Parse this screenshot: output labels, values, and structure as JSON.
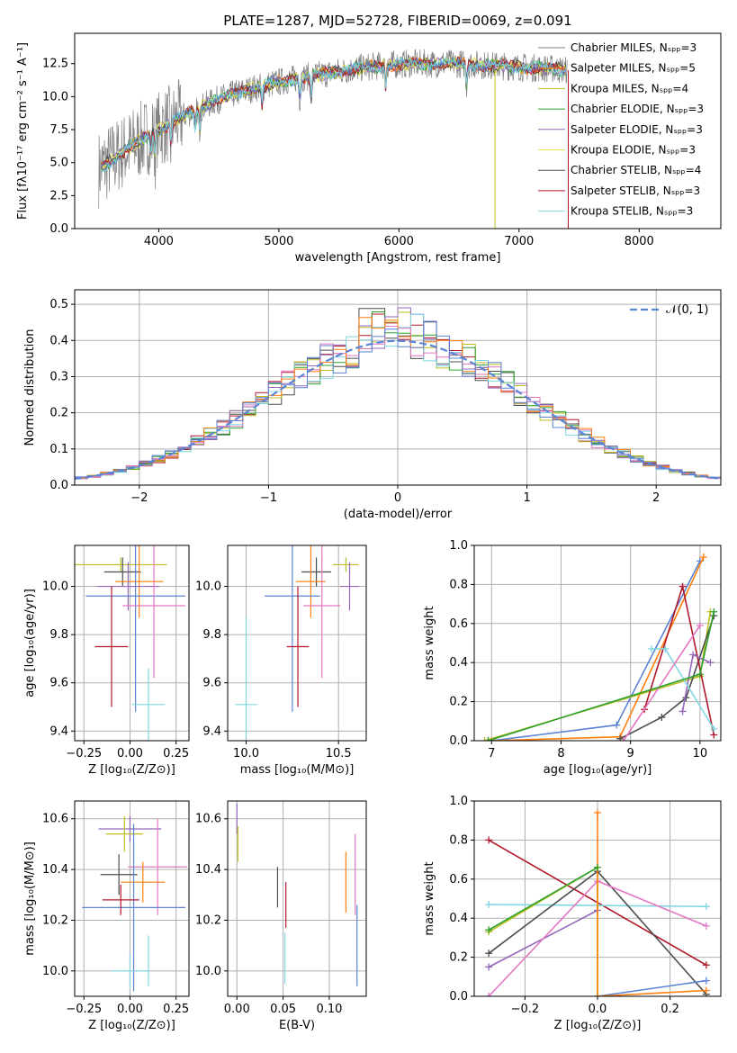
{
  "figure_title": "PLATE=1287, MJD=52728, FIBERID=0069, z=0.091",
  "colors": {
    "chabrier_miles": "#7f7f7f",
    "salpeter_miles": "#ff7f0e",
    "kroupa_miles": "#bcbd22",
    "chabrier_elodie": "#2ca02c",
    "salpeter_elodie": "#9467bd",
    "kroupa_elodie": "#e6e64c",
    "chabrier_stelib": "#4d4d4d",
    "salpeter_stelib": "#b2182b",
    "kroupa_stelib": "#7fd6e0",
    "pink": "#e377c2",
    "blue": "#5b84d6",
    "normal_curve": "#5b84d6"
  },
  "chart_data": [
    {
      "id": "spectrum",
      "type": "line",
      "title": "PLATE=1287, MJD=52728, FIBERID=0069, z=0.091",
      "xlabel": "wavelength [Angstrom, rest frame]",
      "ylabel": "Flux [fλ10⁻¹⁷ erg cm⁻² s⁻¹ A⁻¹]",
      "xlim": [
        3300,
        8680
      ],
      "ylim": [
        0,
        14.8
      ],
      "xticks": [
        "4000",
        "5000",
        "6000",
        "7000",
        "8000"
      ],
      "yticks": [
        "0.0",
        "2.5",
        "5.0",
        "7.5",
        "10.0",
        "12.5"
      ],
      "legend_position": "right",
      "legend": [
        "Chabrier MILES, Nₛₚₚ=3",
        "Salpeter MILES, Nₛₚₚ=5",
        "Kroupa MILES, Nₛₚₚ=4",
        "Chabrier ELODIE, Nₛₚₚ=3",
        "Salpeter ELODIE, Nₛₚₚ=3",
        "Kroupa ELODIE, Nₛₚₚ=3",
        "Chabrier STELIB, Nₛₚₚ=4",
        "Salpeter STELIB, Nₛₚₚ=3",
        "Kroupa STELIB, Nₛₚₚ=3"
      ],
      "continuum": [
        [
          3500,
          4.5
        ],
        [
          3700,
          5.8
        ],
        [
          3900,
          7.0
        ],
        [
          4100,
          8.0
        ],
        [
          4300,
          9.0
        ],
        [
          4500,
          9.8
        ],
        [
          4700,
          10.4
        ],
        [
          4900,
          10.9
        ],
        [
          5100,
          11.3
        ],
        [
          5300,
          11.6
        ],
        [
          5500,
          11.9
        ],
        [
          5700,
          12.2
        ],
        [
          5900,
          12.4
        ],
        [
          6100,
          12.5
        ],
        [
          6300,
          12.5
        ],
        [
          6500,
          12.5
        ],
        [
          6700,
          12.4
        ],
        [
          6900,
          12.3
        ],
        [
          7100,
          12.2
        ],
        [
          7300,
          12.1
        ],
        [
          7400,
          12.0
        ]
      ]
    },
    {
      "id": "residuals",
      "type": "bar",
      "xlabel": "(data-model)/error",
      "ylabel": "Normed distribution",
      "xlim": [
        -2.5,
        2.5
      ],
      "ylim": [
        0,
        0.54
      ],
      "xticks": [
        "−2",
        "−1",
        "0",
        "1",
        "2"
      ],
      "yticks": [
        "0.0",
        "0.1",
        "0.2",
        "0.3",
        "0.4",
        "0.5"
      ],
      "legend": [
        "𝒩(0, 1)"
      ],
      "legend_position": "top-right",
      "normal_mean": 0,
      "normal_sigma": 1
    },
    {
      "id": "age_vs_Z",
      "type": "scatter",
      "xlabel": "Z [log₁₀(Z/Z⊙)]",
      "ylabel": "age  [log₁₀(age/yr)]",
      "xlim": [
        -0.3,
        0.32
      ],
      "ylim": [
        9.36,
        10.17
      ],
      "xticks": [
        "−0.25",
        "0.00",
        "0.25"
      ],
      "yticks": [
        "9.4",
        "9.6",
        "9.8",
        "10.0"
      ],
      "points": [
        {
          "c": "kroupa_miles",
          "x": -0.05,
          "y": 10.09,
          "ex": 0.25,
          "ey": 0.03
        },
        {
          "c": "chabrier_stelib",
          "x": -0.04,
          "y": 10.06,
          "ex": 0.1,
          "ey": 0.06
        },
        {
          "c": "salpeter_miles",
          "x": 0.05,
          "y": 10.02,
          "ex": 0.13,
          "ey": 0.15
        },
        {
          "c": "salpeter_elodie",
          "x": -0.01,
          "y": 10.0,
          "ex": 0.17,
          "ey": 0.1
        },
        {
          "c": "blue",
          "x": 0.03,
          "y": 9.96,
          "ex": 0.27,
          "ey": 0.48
        },
        {
          "c": "pink",
          "x": 0.13,
          "y": 9.92,
          "ex": 0.17,
          "ey": 0.3
        },
        {
          "c": "salpeter_stelib",
          "x": -0.1,
          "y": 9.75,
          "ex": 0.09,
          "ey": 0.25
        },
        {
          "c": "kroupa_stelib",
          "x": 0.1,
          "y": 9.51,
          "ex": 0.09,
          "ey": 0.15
        }
      ]
    },
    {
      "id": "age_vs_mass",
      "type": "scatter",
      "xlabel": "mass [log₁₀(M/M⊙)]",
      "ylabel": "",
      "xlim": [
        9.9,
        10.65
      ],
      "ylim": [
        9.36,
        10.17
      ],
      "xticks": [
        "10.0",
        "10.5"
      ],
      "yticks": [
        "9.4",
        "9.6",
        "9.8",
        "10.0"
      ],
      "points": [
        {
          "c": "kroupa_miles",
          "x": 10.54,
          "y": 10.09,
          "ex": 0.07,
          "ey": 0.03
        },
        {
          "c": "chabrier_stelib",
          "x": 10.38,
          "y": 10.06,
          "ex": 0.08,
          "ey": 0.06
        },
        {
          "c": "salpeter_miles",
          "x": 10.35,
          "y": 10.02,
          "ex": 0.08,
          "ey": 0.15
        },
        {
          "c": "salpeter_elodie",
          "x": 10.56,
          "y": 10.0,
          "ex": 0.05,
          "ey": 0.1
        },
        {
          "c": "blue",
          "x": 10.25,
          "y": 9.96,
          "ex": 0.15,
          "ey": 0.48
        },
        {
          "c": "pink",
          "x": 10.41,
          "y": 9.92,
          "ex": 0.1,
          "ey": 0.3
        },
        {
          "c": "salpeter_stelib",
          "x": 10.28,
          "y": 9.75,
          "ex": 0.06,
          "ey": 0.25
        },
        {
          "c": "kroupa_stelib",
          "x": 10.0,
          "y": 9.51,
          "ex": 0.06,
          "ey": 0.36
        }
      ]
    },
    {
      "id": "weight_vs_age",
      "type": "line",
      "xlabel": "age  [log₁₀(age/yr)]",
      "ylabel": "mass weight",
      "xlim": [
        6.75,
        10.3
      ],
      "ylim": [
        0,
        1.0
      ],
      "xticks": [
        "7",
        "8",
        "9",
        "10"
      ],
      "yticks": [
        "0.0",
        "0.2",
        "0.4",
        "0.6",
        "0.8",
        "1.0"
      ],
      "series": [
        {
          "c": "blue",
          "x": [
            7.0,
            8.8,
            10.0
          ],
          "y": [
            0.0,
            0.08,
            0.92
          ]
        },
        {
          "c": "salpeter_miles",
          "x": 7.0,
          "y": 0,
          "x2": [
            7.0,
            8.85,
            10.05
          ],
          "y2": [
            0.0,
            0.02,
            0.94
          ]
        },
        {
          "c": "kroupa_miles",
          "x": [
            6.9,
            10.0,
            10.15
          ],
          "y": [
            0.0,
            0.33,
            0.66
          ]
        },
        {
          "c": "chabrier_stelib",
          "x": [
            8.85,
            9.45,
            9.8,
            10.2
          ],
          "y": [
            0.01,
            0.12,
            0.22,
            0.64
          ]
        },
        {
          "c": "salpeter_stelib",
          "x": [
            9.2,
            9.75,
            10.2
          ],
          "y": [
            0.16,
            0.79,
            0.03
          ]
        },
        {
          "c": "salpeter_elodie",
          "x": [
            9.75,
            9.9,
            10.15
          ],
          "y": [
            0.15,
            0.44,
            0.4
          ]
        },
        {
          "c": "kroupa_stelib",
          "x": [
            9.3,
            9.5,
            10.2
          ],
          "y": [
            0.47,
            0.47,
            0.06
          ]
        },
        {
          "c": "pink",
          "x": [
            8.9,
            10.0
          ],
          "y": [
            0.0,
            0.59
          ]
        },
        {
          "c": "chabrier_elodie",
          "x": [
            6.95,
            10.0,
            10.2
          ],
          "y": [
            0.0,
            0.34,
            0.66
          ]
        }
      ]
    },
    {
      "id": "mass_vs_Z",
      "type": "scatter",
      "xlabel": "Z [log₁₀(Z/Z⊙)]",
      "ylabel": "mass [log₁₀(M/M⊙)]",
      "xlim": [
        -0.3,
        0.32
      ],
      "ylim": [
        9.9,
        10.67
      ],
      "xticks": [
        "−0.25",
        "0.00",
        "0.25"
      ],
      "yticks": [
        "10.0",
        "10.2",
        "10.4",
        "10.6"
      ],
      "points": [
        {
          "c": "salpeter_elodie",
          "x": 0.0,
          "y": 10.56,
          "ex": 0.17,
          "ey": 0.05
        },
        {
          "c": "kroupa_miles",
          "x": -0.03,
          "y": 10.54,
          "ex": 0.1,
          "ey": 0.07
        },
        {
          "c": "pink",
          "x": 0.15,
          "y": 10.41,
          "ex": 0.16,
          "ey": 0.19
        },
        {
          "c": "chabrier_stelib",
          "x": -0.06,
          "y": 10.38,
          "ex": 0.1,
          "ey": 0.08
        },
        {
          "c": "salpeter_miles",
          "x": 0.07,
          "y": 10.35,
          "ex": 0.12,
          "ey": 0.08
        },
        {
          "c": "blue",
          "x": 0.02,
          "y": 10.25,
          "ex": 0.28,
          "ey": 0.33
        },
        {
          "c": "salpeter_stelib",
          "x": -0.05,
          "y": 10.28,
          "ex": 0.1,
          "ey": 0.06
        },
        {
          "c": "kroupa_stelib",
          "x": 0.0,
          "y": 10.0,
          "ex": 0.1,
          "ey": 0.07
        },
        {
          "c": "kroupa_stelib",
          "x": 0.1,
          "y": 10.04,
          "ex": 0.0,
          "ey": 0.1
        }
      ]
    },
    {
      "id": "mass_vs_ebv",
      "type": "scatter",
      "xlabel": "E(B-V)",
      "ylabel": "",
      "xlim": [
        -0.01,
        0.14
      ],
      "ylim": [
        9.9,
        10.67
      ],
      "xticks": [
        "0.00",
        "0.05",
        "0.10"
      ],
      "yticks": [
        "10.0",
        "10.2",
        "10.4",
        "10.6"
      ],
      "points": [
        {
          "c": "salpeter_elodie",
          "x": 0.0,
          "y": 10.6,
          "ex": 0.0,
          "ey": 0.06
        },
        {
          "c": "kroupa_miles",
          "x": 0.001,
          "y": 10.5,
          "ex": 0.0,
          "ey": 0.07
        },
        {
          "c": "chabrier_stelib",
          "x": 0.044,
          "y": 10.33,
          "ex": 0.0,
          "ey": 0.08
        },
        {
          "c": "salpeter_stelib",
          "x": 0.053,
          "y": 10.26,
          "ex": 0.0,
          "ey": 0.09
        },
        {
          "c": "kroupa_stelib",
          "x": 0.052,
          "y": 10.05,
          "ex": 0.0,
          "ey": 0.1
        },
        {
          "c": "salpeter_miles",
          "x": 0.118,
          "y": 10.35,
          "ex": 0.0,
          "ey": 0.12
        },
        {
          "c": "pink",
          "x": 0.128,
          "y": 10.38,
          "ex": 0.0,
          "ey": 0.16
        },
        {
          "c": "blue",
          "x": 0.13,
          "y": 10.1,
          "ex": 0.0,
          "ey": 0.16
        }
      ]
    },
    {
      "id": "weight_vs_Z",
      "type": "line",
      "xlabel": "Z [log₁₀(Z/Z⊙)]",
      "ylabel": "mass weight",
      "xlim": [
        -0.34,
        0.34
      ],
      "ylim": [
        0,
        1.0
      ],
      "xticks": [
        "−0.2",
        "0.0",
        "0.2"
      ],
      "yticks": [
        "0.0",
        "0.2",
        "0.4",
        "0.6",
        "0.8",
        "1.0"
      ],
      "series": [
        {
          "c": "salpeter_stelib",
          "x": [
            -0.3,
            0.3
          ],
          "y": [
            0.8,
            0.16
          ]
        },
        {
          "c": "kroupa_stelib",
          "x": [
            -0.3,
            0.3
          ],
          "y": [
            0.47,
            0.46
          ]
        },
        {
          "c": "kroupa_miles",
          "x": [
            -0.3,
            0.0,
            0.0
          ],
          "y": [
            0.33,
            0.66,
            0.0
          ]
        },
        {
          "c": "chabrier_stelib",
          "x": [
            -0.3,
            0.0,
            0.3
          ],
          "y": [
            0.22,
            0.64,
            0.01
          ]
        },
        {
          "c": "salpeter_elodie",
          "x": [
            -0.3,
            0.0
          ],
          "y": [
            0.15,
            0.44
          ]
        },
        {
          "c": "pink",
          "x": [
            -0.3,
            0.0,
            0.3
          ],
          "y": [
            0.0,
            0.59,
            0.36
          ]
        },
        {
          "c": "blue",
          "x": [
            0.0,
            0.3
          ],
          "y": [
            0.0,
            0.08
          ]
        },
        {
          "c": "salpeter_miles",
          "x": [
            0.0,
            0.0,
            0.3
          ],
          "y": [
            0.94,
            0.0,
            0.03
          ]
        },
        {
          "c": "chabrier_elodie",
          "x": [
            -0.3,
            0.0
          ],
          "y": [
            0.34,
            0.66
          ]
        }
      ]
    }
  ]
}
